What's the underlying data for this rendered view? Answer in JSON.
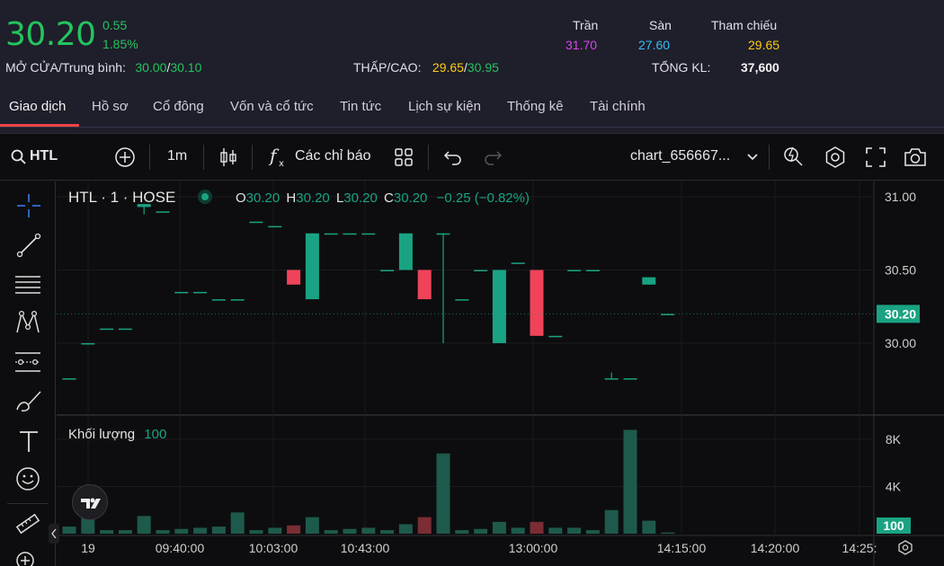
{
  "quote": {
    "price": "30.20",
    "change": "0.55",
    "change_pct": "1.85%",
    "open_avg_label": "MỞ CỬA/Trung bình:",
    "open": "30.00",
    "avg": "30.10",
    "low_high_label": "THẤP/CAO:",
    "low": "29.65",
    "high": "30.95",
    "ceiling_label": "Trần",
    "ceiling": "31.70",
    "floor_label": "Sàn",
    "floor": "27.60",
    "ref_label": "Tham chiếu",
    "ref": "29.65",
    "total_vol_label": "TỔNG KL:",
    "total_vol": "37,600",
    "slash": "/"
  },
  "tabs": [
    "Giao dịch",
    "Hồ sơ",
    "Cổ đông",
    "Vốn và cổ tức",
    "Tin tức",
    "Lịch sự kiện",
    "Thống kê",
    "Tài chính"
  ],
  "toolbar": {
    "symbol": "HTL",
    "interval": "1m",
    "indicators": "Các chỉ báo",
    "layout_name": "chart_656667..."
  },
  "legend": {
    "title": "HTL · 1 · HOSE",
    "o_label": "O",
    "o": "30.20",
    "h_label": "H",
    "h": "30.20",
    "l_label": "L",
    "l": "30.20",
    "c_label": "C",
    "c": "30.20",
    "change": "−0.25 (−0.82%)",
    "volume_label": "Khối lượng",
    "volume_value": "100"
  },
  "colors": {
    "up": "#1aa383",
    "down": "#f0435a",
    "vol_up": "#1e5a4c",
    "vol_down": "#7a2d33",
    "price_tag": "#1aa383"
  },
  "chart_data": {
    "type": "candlestick",
    "price_axis_ticks": [
      "31.00",
      "30.50",
      "30.00"
    ],
    "price_tag": "30.20",
    "volume_axis_ticks": [
      "8K",
      "4K"
    ],
    "volume_tag": "100",
    "time_ticks": [
      "19",
      "09:40:00",
      "10:03:00",
      "10:43:00",
      "13:00:00",
      "14:15:00",
      "14:20:00",
      "14:25:"
    ],
    "price_range": [
      29.65,
      31.0
    ],
    "volume_range": [
      0,
      8000
    ],
    "candles": [
      {
        "o": 29.76,
        "h": 29.76,
        "l": 29.76,
        "c": 29.76,
        "v": 600
      },
      {
        "o": 30.0,
        "h": 30.0,
        "l": 30.0,
        "c": 30.0,
        "v": 1800
      },
      {
        "o": 30.1,
        "h": 30.1,
        "l": 30.1,
        "c": 30.1,
        "v": 300
      },
      {
        "o": 30.1,
        "h": 30.1,
        "l": 30.1,
        "c": 30.1,
        "v": 300
      },
      {
        "o": 30.93,
        "h": 30.95,
        "l": 30.88,
        "c": 30.95,
        "v": 1500
      },
      {
        "o": 30.9,
        "h": 30.9,
        "l": 30.9,
        "c": 30.9,
        "v": 300
      },
      {
        "o": 30.35,
        "h": 30.35,
        "l": 30.35,
        "c": 30.35,
        "v": 400
      },
      {
        "o": 30.35,
        "h": 30.35,
        "l": 30.35,
        "c": 30.35,
        "v": 500
      },
      {
        "o": 30.3,
        "h": 30.3,
        "l": 30.3,
        "c": 30.3,
        "v": 600
      },
      {
        "o": 30.3,
        "h": 30.3,
        "l": 30.3,
        "c": 30.3,
        "v": 1800
      },
      {
        "o": 30.83,
        "h": 30.83,
        "l": 30.83,
        "c": 30.83,
        "v": 300
      },
      {
        "o": 30.8,
        "h": 30.8,
        "l": 30.8,
        "c": 30.8,
        "v": 500
      },
      {
        "o": 30.5,
        "h": 30.5,
        "l": 30.4,
        "c": 30.4,
        "v": 700
      },
      {
        "o": 30.3,
        "h": 30.75,
        "l": 30.3,
        "c": 30.75,
        "v": 1400
      },
      {
        "o": 30.75,
        "h": 30.75,
        "l": 30.75,
        "c": 30.75,
        "v": 300
      },
      {
        "o": 30.75,
        "h": 30.75,
        "l": 30.75,
        "c": 30.75,
        "v": 400
      },
      {
        "o": 30.75,
        "h": 30.75,
        "l": 30.75,
        "c": 30.75,
        "v": 500
      },
      {
        "o": 30.5,
        "h": 30.5,
        "l": 30.5,
        "c": 30.5,
        "v": 300
      },
      {
        "o": 30.5,
        "h": 30.75,
        "l": 30.5,
        "c": 30.75,
        "v": 800
      },
      {
        "o": 30.5,
        "h": 30.5,
        "l": 30.3,
        "c": 30.3,
        "v": 1400
      },
      {
        "o": 30.75,
        "h": 30.75,
        "l": 30.0,
        "c": 30.75,
        "v": 6800
      },
      {
        "o": 30.3,
        "h": 30.3,
        "l": 30.3,
        "c": 30.3,
        "v": 300
      },
      {
        "o": 30.5,
        "h": 30.5,
        "l": 30.5,
        "c": 30.5,
        "v": 400
      },
      {
        "o": 30.0,
        "h": 30.5,
        "l": 30.0,
        "c": 30.5,
        "v": 1000
      },
      {
        "o": 30.55,
        "h": 30.55,
        "l": 30.55,
        "c": 30.55,
        "v": 500
      },
      {
        "o": 30.5,
        "h": 30.5,
        "l": 30.05,
        "c": 30.05,
        "v": 1000
      },
      {
        "o": 30.05,
        "h": 30.05,
        "l": 30.05,
        "c": 30.05,
        "v": 500
      },
      {
        "o": 30.5,
        "h": 30.5,
        "l": 30.5,
        "c": 30.5,
        "v": 500
      },
      {
        "o": 30.5,
        "h": 30.5,
        "l": 30.5,
        "c": 30.5,
        "v": 300
      },
      {
        "o": 29.76,
        "h": 29.8,
        "l": 29.76,
        "c": 29.76,
        "v": 2000
      },
      {
        "o": 29.76,
        "h": 29.76,
        "l": 29.76,
        "c": 29.76,
        "v": 8800
      },
      {
        "o": 30.4,
        "h": 30.45,
        "l": 30.4,
        "c": 30.45,
        "v": 1100
      },
      {
        "o": 30.2,
        "h": 30.2,
        "l": 30.2,
        "c": 30.2,
        "v": 100
      }
    ]
  }
}
